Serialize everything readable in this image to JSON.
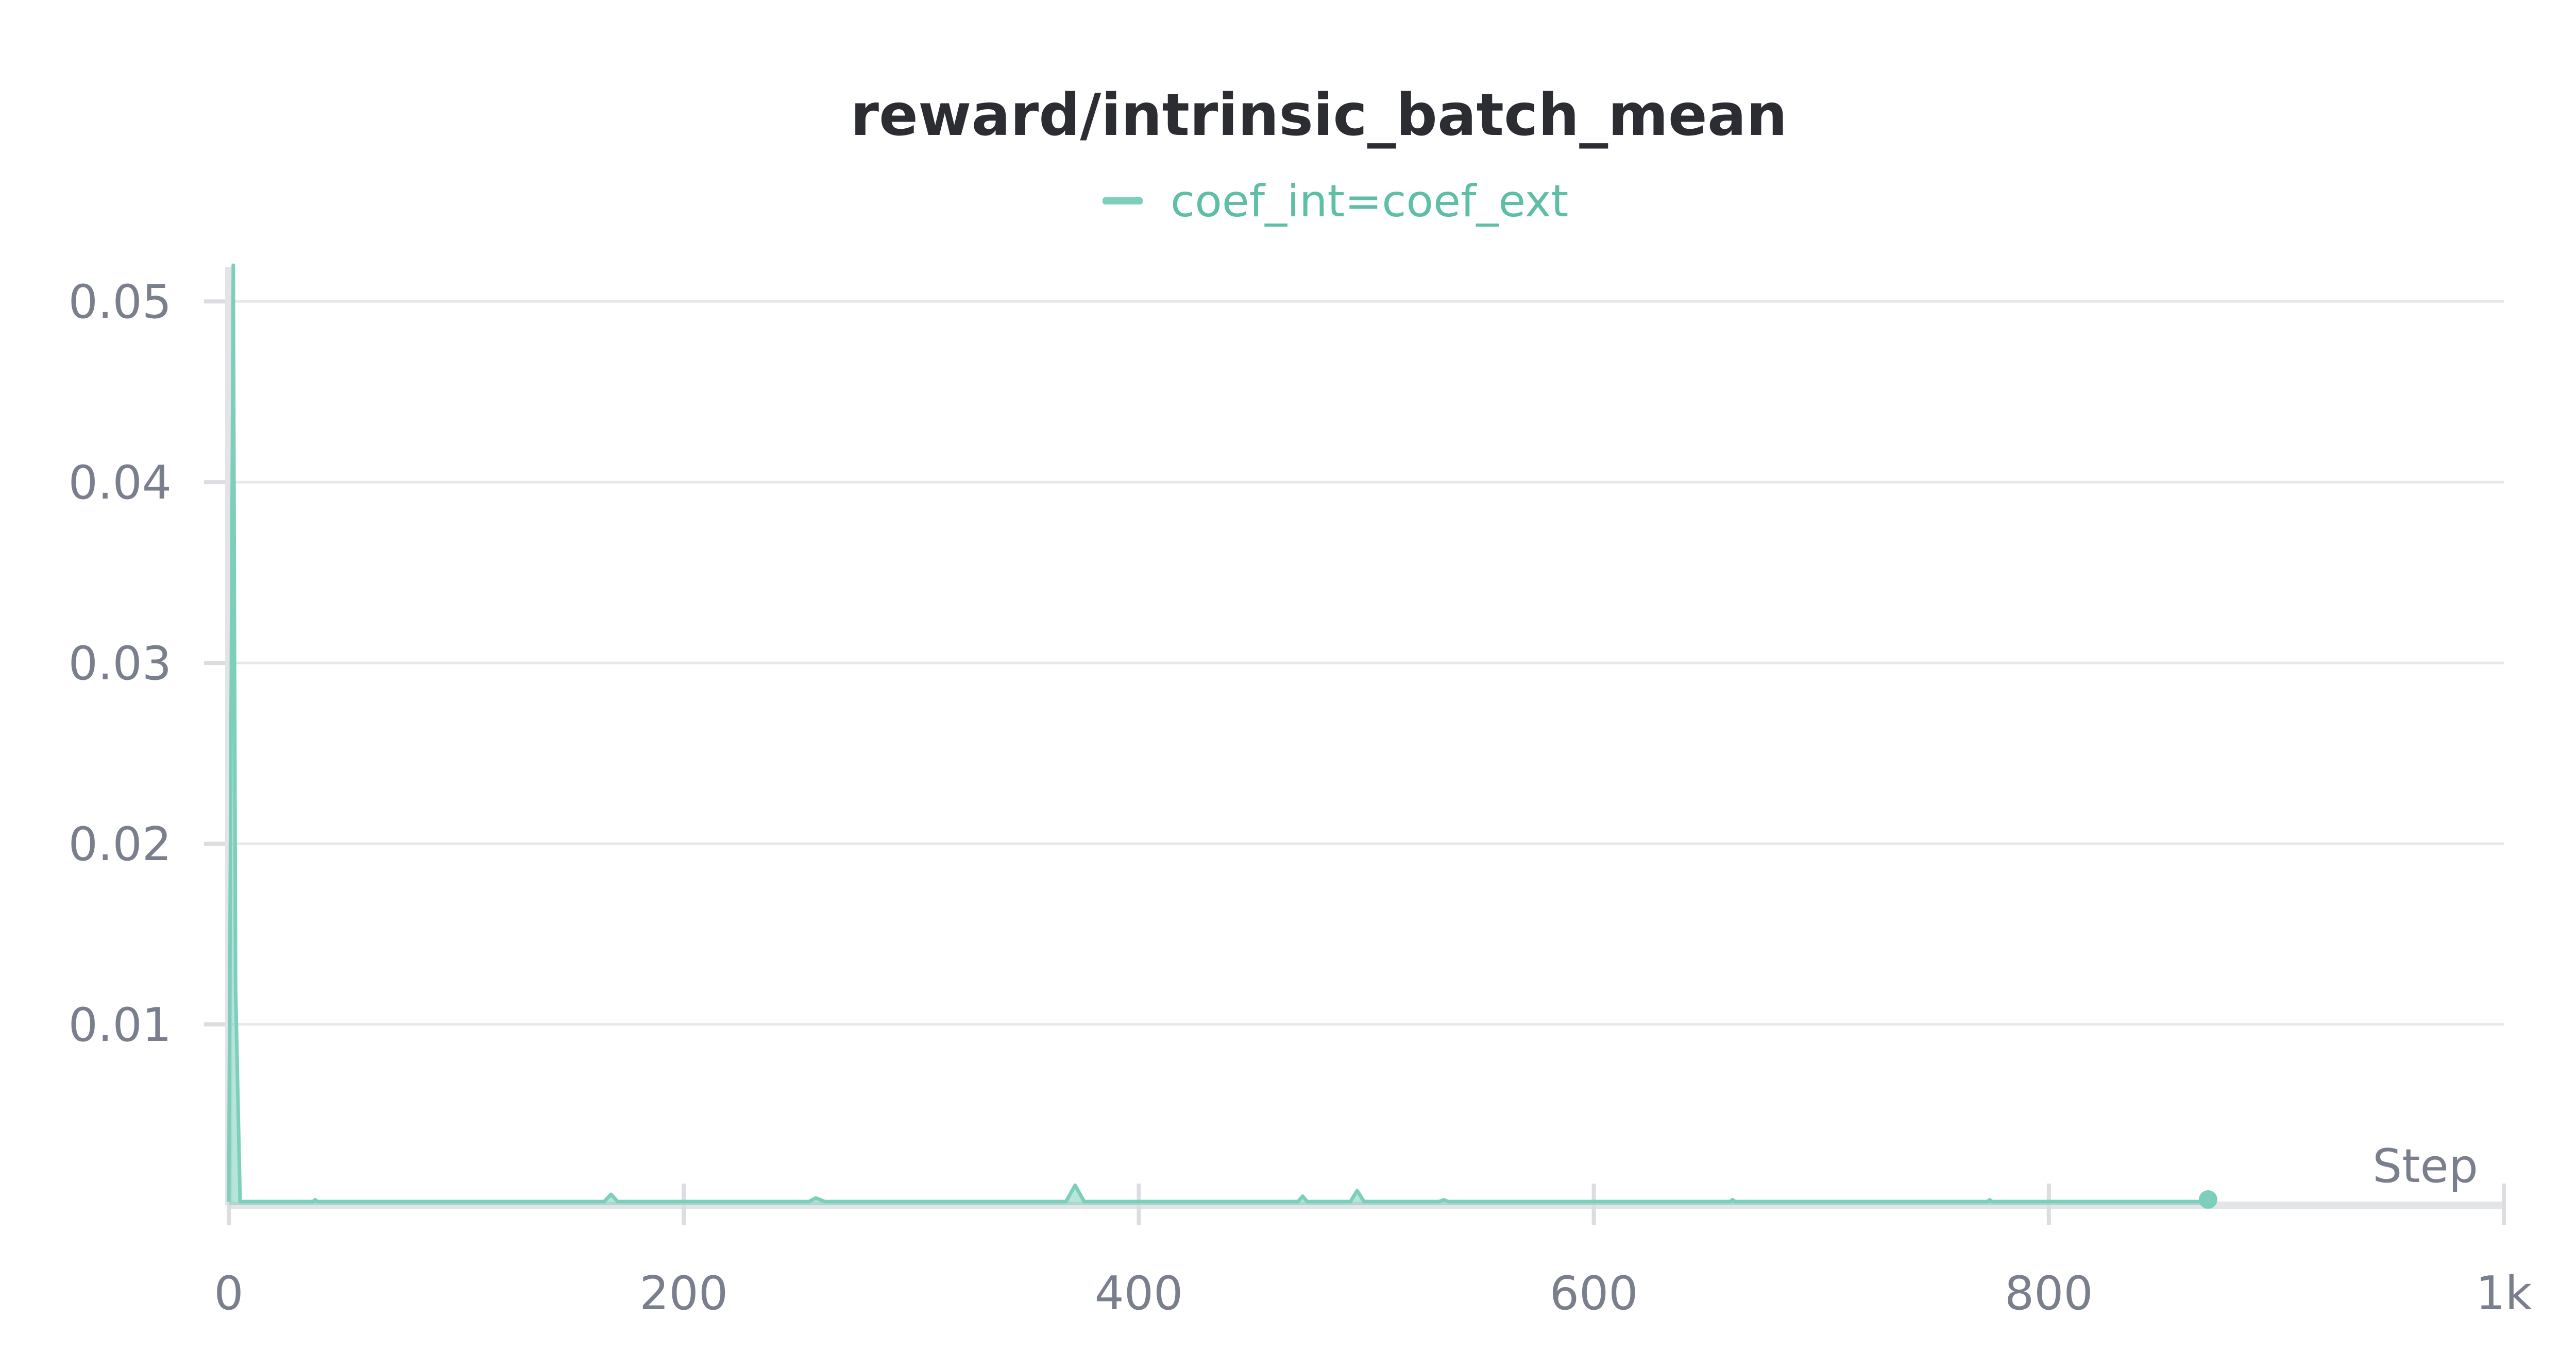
{
  "chart_data": {
    "type": "line",
    "title": "reward/intrinsic_batch_mean",
    "xlabel": "Step",
    "ylabel": "",
    "xlim": [
      0,
      1000
    ],
    "ylim": [
      0,
      0.052
    ],
    "x_ticks": [
      0,
      200,
      400,
      600,
      800,
      1000
    ],
    "x_tick_labels": [
      "0",
      "200",
      "400",
      "600",
      "800",
      "1k"
    ],
    "y_ticks": [
      0.01,
      0.02,
      0.03,
      0.04,
      0.05
    ],
    "y_tick_labels": [
      "0.01",
      "0.02",
      "0.03",
      "0.04",
      "0.05"
    ],
    "grid": true,
    "legend_position": "top-center",
    "series": [
      {
        "name": "coef_int=coef_ext",
        "color": "#7dcfbc",
        "x": [
          0,
          2,
          3,
          5,
          37,
          38,
          39,
          80,
          120,
          165,
          168,
          171,
          255,
          258,
          262,
          298,
          368,
          372,
          376,
          470,
          472,
          474,
          493,
          496,
          499,
          532,
          534,
          536,
          660,
          661,
          662,
          773,
          774,
          775,
          870
        ],
        "y": [
          0.0002,
          0.052,
          0.012,
          0.0002,
          0.0002,
          0.0003,
          0.0002,
          0.0002,
          0.0002,
          0.0002,
          0.0006,
          0.0002,
          0.0002,
          0.0004,
          0.0002,
          0.0002,
          0.0002,
          0.0011,
          0.0002,
          0.0002,
          0.0005,
          0.0002,
          0.0002,
          0.0008,
          0.0002,
          0.0002,
          0.0003,
          0.0002,
          0.0002,
          0.0003,
          0.0002,
          0.0002,
          0.0003,
          0.0002,
          0.0002
        ]
      }
    ]
  }
}
